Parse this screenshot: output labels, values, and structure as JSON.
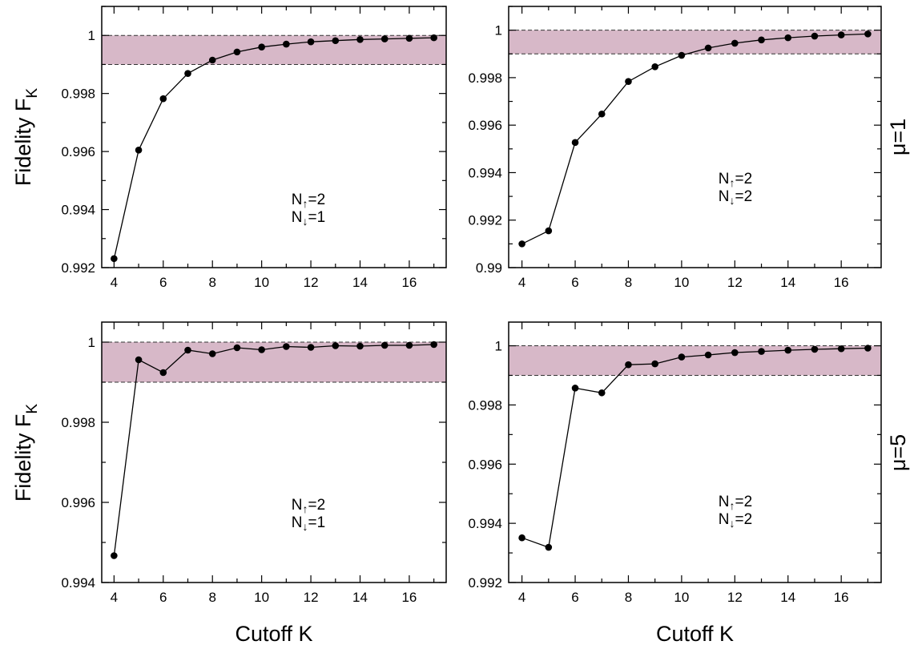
{
  "chart_data": [
    {
      "type": "line",
      "ylabel": "Fidelity F",
      "ylabel_sub": "K",
      "xlabel": "",
      "row_label": "",
      "annotation": {
        "lines": [
          {
            "base": "N",
            "arrow": "↑",
            "rest": "=2"
          },
          {
            "base": "N",
            "arrow": "↓",
            "rest": "=1"
          }
        ]
      },
      "xlim": [
        3.5,
        17.5
      ],
      "ylim": [
        0.992,
        1.001
      ],
      "xticks": [
        4,
        6,
        8,
        10,
        12,
        14,
        16
      ],
      "yticks": [
        0.992,
        0.994,
        0.996,
        0.998,
        1
      ],
      "yticklabels": [
        "0.992",
        "0.994",
        "0.996",
        "0.998",
        "1"
      ],
      "band": [
        0.999,
        1.0
      ],
      "band_color": "#d7b8c8",
      "x": [
        4,
        5,
        6,
        7,
        8,
        9,
        10,
        11,
        12,
        13,
        14,
        15,
        16,
        17
      ],
      "y": [
        0.99231,
        0.99605,
        0.99782,
        0.99869,
        0.99915,
        0.99943,
        0.9996,
        0.9997,
        0.99978,
        0.99982,
        0.99986,
        0.99988,
        0.9999,
        0.99992
      ]
    },
    {
      "type": "line",
      "ylabel": "",
      "ylabel_sub": "",
      "xlabel": "",
      "row_label": "μ=1",
      "annotation": {
        "lines": [
          {
            "base": "N",
            "arrow": "↑",
            "rest": "=2"
          },
          {
            "base": "N",
            "arrow": "↓",
            "rest": "=2"
          }
        ]
      },
      "xlim": [
        3.5,
        17.5
      ],
      "ylim": [
        0.99,
        1.001
      ],
      "xticks": [
        4,
        6,
        8,
        10,
        12,
        14,
        16
      ],
      "yticks": [
        0.99,
        0.992,
        0.994,
        0.996,
        0.998,
        1
      ],
      "yticklabels": [
        "0.99",
        "0.992",
        "0.994",
        "0.996",
        "0.998",
        "1"
      ],
      "band": [
        0.999,
        1.0
      ],
      "band_color": "#d7b8c8",
      "x": [
        4,
        5,
        6,
        7,
        8,
        9,
        10,
        11,
        12,
        13,
        14,
        15,
        16,
        17
      ],
      "y": [
        0.991,
        0.99155,
        0.99527,
        0.99647,
        0.99784,
        0.99846,
        0.99894,
        0.99925,
        0.99945,
        0.99959,
        0.99968,
        0.99975,
        0.9998,
        0.99984
      ]
    },
    {
      "type": "line",
      "ylabel": "Fidelity F",
      "ylabel_sub": "K",
      "xlabel": "Cutoff K",
      "row_label": "",
      "annotation": {
        "lines": [
          {
            "base": "N",
            "arrow": "↑",
            "rest": "=2"
          },
          {
            "base": "N",
            "arrow": "↓",
            "rest": "=1"
          }
        ]
      },
      "xlim": [
        3.5,
        17.5
      ],
      "ylim": [
        0.994,
        1.0005
      ],
      "xticks": [
        4,
        6,
        8,
        10,
        12,
        14,
        16
      ],
      "yticks": [
        0.994,
        0.996,
        0.998,
        1
      ],
      "yticklabels": [
        "0.994",
        "0.996",
        "0.998",
        "1"
      ],
      "band": [
        0.999,
        1.0
      ],
      "band_color": "#d7b8c8",
      "x": [
        4,
        5,
        6,
        7,
        8,
        9,
        10,
        11,
        12,
        13,
        14,
        15,
        16,
        17
      ],
      "y": [
        0.99467,
        0.99956,
        0.99924,
        0.9998,
        0.99971,
        0.99986,
        0.99981,
        0.99989,
        0.99987,
        0.99991,
        0.9999,
        0.99992,
        0.99992,
        0.99994
      ]
    },
    {
      "type": "line",
      "ylabel": "",
      "ylabel_sub": "",
      "xlabel": "Cutoff K",
      "row_label": "μ=5",
      "annotation": {
        "lines": [
          {
            "base": "N",
            "arrow": "↑",
            "rest": "=2"
          },
          {
            "base": "N",
            "arrow": "↓",
            "rest": "=2"
          }
        ]
      },
      "xlim": [
        3.5,
        17.5
      ],
      "ylim": [
        0.992,
        1.0008
      ],
      "xticks": [
        4,
        6,
        8,
        10,
        12,
        14,
        16
      ],
      "yticks": [
        0.992,
        0.994,
        0.996,
        0.998,
        1
      ],
      "yticklabels": [
        "0.992",
        "0.994",
        "0.996",
        "0.998",
        "1"
      ],
      "band": [
        0.999,
        1.0
      ],
      "band_color": "#d7b8c8",
      "x": [
        4,
        5,
        6,
        7,
        8,
        9,
        10,
        11,
        12,
        13,
        14,
        15,
        16,
        17
      ],
      "y": [
        0.99351,
        0.99319,
        0.99857,
        0.99841,
        0.99936,
        0.99939,
        0.99962,
        0.99969,
        0.99977,
        0.99981,
        0.99985,
        0.99988,
        0.9999,
        0.99992
      ]
    }
  ]
}
